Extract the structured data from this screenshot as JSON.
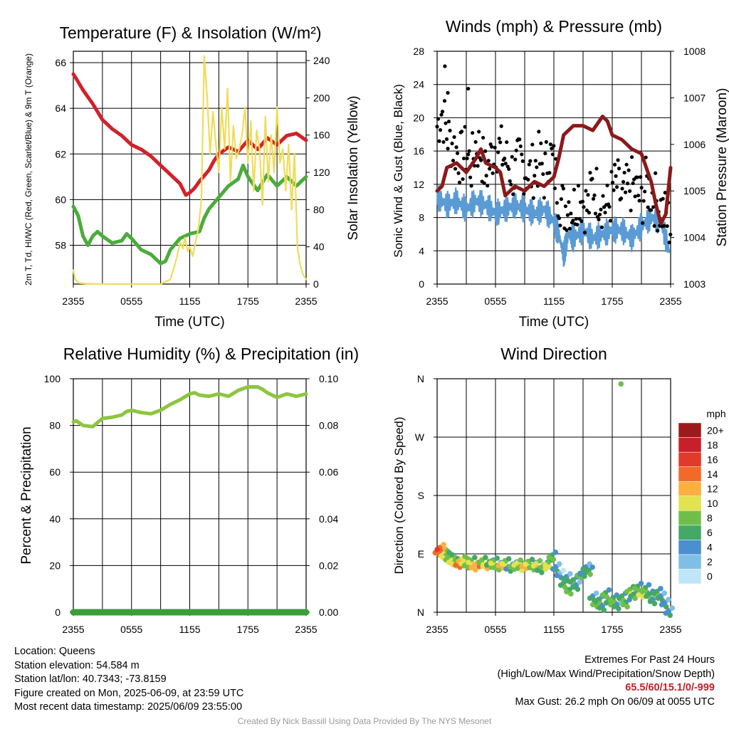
{
  "chart_data": [
    {
      "type": "line",
      "title": "Temperature (F) & Insolation (W/m²)",
      "xlabel": "Time (UTC)",
      "ylabel": "2m T, Td, HI/WC (Red, Green, Scarlet/Blue) & 9m T (Orange)",
      "ylabel_right": "Solar Insolation (Yellow)",
      "x_ticks": [
        "2355",
        "0555",
        "1155",
        "1755",
        "2355"
      ],
      "ylim": [
        56.3,
        66.5
      ],
      "y_ticks": [
        58,
        60,
        62,
        64,
        66
      ],
      "ylim_right": [
        0,
        250
      ],
      "y_ticks_right": [
        0,
        40,
        80,
        120,
        160,
        200,
        240
      ],
      "grid": true,
      "series": [
        {
          "color": "#d3212a",
          "hours": [
            0,
            0.3,
            1,
            2,
            3,
            4,
            5,
            6,
            7,
            8,
            9,
            10,
            11,
            11.6,
            12,
            12.5,
            13,
            14,
            14.5,
            15,
            16,
            17,
            18,
            19,
            20,
            21,
            22,
            23,
            24
          ],
          "values": [
            65.5,
            65.3,
            64.8,
            64.2,
            63.5,
            63.1,
            62.8,
            62.4,
            62.2,
            61.9,
            61.5,
            61.1,
            60.7,
            60.2,
            60.3,
            60.5,
            60.8,
            61.3,
            61.7,
            62.0,
            62.3,
            62.1,
            62.6,
            62.2,
            62.7,
            62.4,
            62.8,
            62.9,
            62.6
          ]
        },
        {
          "color": "#4aac3c",
          "hours": [
            0,
            0.5,
            1,
            1.5,
            2,
            2.5,
            3,
            4,
            5,
            5.5,
            6,
            7,
            8,
            9,
            9.5,
            10,
            11,
            12,
            13,
            13.5,
            14,
            15,
            16,
            17,
            17.5,
            18,
            19,
            20,
            21,
            22,
            23,
            24
          ],
          "values": [
            59.7,
            59.3,
            58.4,
            58.0,
            58.4,
            58.6,
            58.4,
            58.1,
            58.2,
            58.5,
            58.3,
            57.8,
            57.6,
            57.2,
            57.3,
            57.8,
            58.3,
            58.5,
            58.6,
            59.2,
            59.6,
            60.1,
            60.6,
            60.9,
            61.5,
            61.0,
            60.4,
            61.1,
            60.6,
            61.0,
            60.6,
            61.0
          ]
        },
        {
          "color": "#f0dc5a",
          "hours": [
            0,
            0.2,
            0.6,
            2,
            5,
            8,
            9,
            10,
            10.3,
            10.7,
            11,
            11.3,
            11.5,
            11.8,
            12,
            12.3,
            12.6,
            12.9,
            13.2,
            13.5,
            13.8,
            14.1,
            14.4,
            14.7,
            15,
            15.3,
            15.6,
            15.9,
            16.2,
            16.5,
            16.8,
            17.1,
            17.4,
            17.7,
            18,
            18.3,
            18.6,
            18.9,
            19.2,
            19.5,
            19.8,
            20.1,
            20.4,
            20.7,
            21,
            21.3,
            21.6,
            21.9,
            22.2,
            22.5,
            22.8,
            23.1,
            23.4,
            23.7,
            24
          ],
          "values": [
            15,
            5,
            1,
            0,
            0,
            0,
            0,
            5,
            15,
            30,
            45,
            38,
            50,
            35,
            40,
            30,
            45,
            60,
            90,
            245,
            200,
            140,
            185,
            150,
            120,
            190,
            145,
            210,
            110,
            170,
            135,
            145,
            160,
            190,
            130,
            175,
            100,
            165,
            145,
            85,
            180,
            110,
            160,
            120,
            190,
            130,
            145,
            100,
            150,
            80,
            140,
            40,
            20,
            10,
            5
          ]
        }
      ]
    },
    {
      "type": "line",
      "title": "Winds (mph) & Pressure (mb)",
      "xlabel": "Time (UTC)",
      "ylabel": "Sonic Wind & Gust (Blue, Black)",
      "ylabel_right": "Station Pressure (Maroon)",
      "x_ticks": [
        "2355",
        "0555",
        "1155",
        "1755",
        "2355"
      ],
      "ylim": [
        0,
        28
      ],
      "y_ticks": [
        0,
        4,
        8,
        12,
        16,
        20,
        24,
        28
      ],
      "ylim_right": [
        1003,
        1008
      ],
      "y_ticks_right": [
        1003,
        1004,
        1005,
        1006,
        1007,
        1008
      ],
      "grid": true,
      "series": [
        {
          "color": "#5b9bd5",
          "hours": [
            0,
            1,
            2,
            3,
            4,
            5,
            6,
            7,
            8,
            9,
            10,
            11,
            12,
            12.5,
            13,
            13.5,
            14,
            15,
            16,
            17,
            18,
            19,
            20,
            21,
            22,
            23,
            24
          ],
          "values": [
            10.5,
            9.5,
            10,
            9,
            10,
            9.5,
            8.5,
            9,
            9.5,
            9,
            8.5,
            9,
            7.5,
            6,
            3.5,
            6,
            5.5,
            6.5,
            5.5,
            6,
            6.5,
            6.5,
            5.5,
            7,
            8,
            7.5,
            3.5
          ]
        },
        {
          "color": "#8b1a1a",
          "hours": [
            0,
            0.5,
            1,
            2,
            3,
            4,
            4.5,
            5,
            6,
            6.5,
            7,
            8,
            9,
            10,
            11,
            12,
            12.5,
            13,
            14,
            15,
            16,
            17,
            17.5,
            18,
            19,
            20,
            21,
            22,
            22.5,
            23,
            23.5,
            24
          ],
          "values": [
            1005.0,
            1005.1,
            1005.5,
            1005.6,
            1005.4,
            1005.7,
            1005.9,
            1005.6,
            1005.5,
            1005.4,
            1004.9,
            1005.1,
            1005.0,
            1005.2,
            1005.1,
            1005.3,
            1005.7,
            1006.2,
            1006.4,
            1006.4,
            1006.3,
            1006.6,
            1006.5,
            1006.2,
            1006.1,
            1005.9,
            1005.8,
            1005.2,
            1004.7,
            1004.3,
            1004.5,
            1005.5
          ]
        }
      ]
    },
    {
      "type": "line",
      "title": "Relative Humidity (%) & Precipitation (in)",
      "ylabel": "Percent & Precipitation",
      "x_ticks": [
        "2355",
        "0555",
        "1155",
        "1755",
        "2355"
      ],
      "ylim": [
        0,
        100
      ],
      "y_ticks": [
        0,
        20,
        40,
        60,
        80,
        100
      ],
      "ylim_right": [
        0,
        0.1
      ],
      "y_ticks_right": [
        "0.00",
        "0.02",
        "0.04",
        "0.06",
        "0.08",
        "0.10"
      ],
      "grid": true,
      "series": [
        {
          "color": "#8cc63f",
          "hours": [
            0,
            0.3,
            1,
            2,
            3,
            4,
            5,
            5.5,
            6,
            7,
            8,
            9,
            10,
            11,
            12,
            12.5,
            13,
            14,
            15,
            16,
            17,
            18,
            19,
            19.5,
            20,
            21,
            22,
            23,
            23.5,
            24
          ],
          "values": [
            81.5,
            82,
            80,
            79.5,
            83,
            83.5,
            84.5,
            86,
            86.5,
            85.5,
            85,
            86.5,
            89,
            91,
            93.5,
            94,
            93,
            92.5,
            93.5,
            92.5,
            95,
            96.5,
            96.5,
            95.5,
            94,
            92,
            93.5,
            92.5,
            93,
            93.5
          ]
        },
        {
          "color": "#3a9e3a",
          "hours": [
            0,
            24
          ],
          "values": [
            0,
            0
          ]
        }
      ]
    },
    {
      "type": "scatter",
      "title": "Wind Direction",
      "ylabel": "Direction (Colored By Speed)",
      "x_ticks": [
        "2355",
        "0555",
        "1155",
        "1755",
        "2355"
      ],
      "y_ticks": [
        "N",
        "E",
        "S",
        "W",
        "N"
      ],
      "colorbar_title": "mph",
      "colorbar_labels": [
        "0",
        "2",
        "4",
        "6",
        "8",
        "10",
        "12",
        "14",
        "16",
        "18",
        "20+"
      ],
      "colorbar_colors": [
        "#bfe6f8",
        "#7fbfe6",
        "#4a8fcf",
        "#44a866",
        "#6fbf4a",
        "#e3e24f",
        "#fbb040",
        "#f06a2a",
        "#e03a2a",
        "#c8202a",
        "#9b1b1b"
      ],
      "points_dir_deg": [
        [
          0.1,
          95,
          12
        ],
        [
          0.3,
          100,
          14
        ],
        [
          0.5,
          93,
          13
        ],
        [
          0.7,
          90,
          9
        ],
        [
          0.9,
          87,
          8
        ],
        [
          1.2,
          84,
          7
        ],
        [
          1.5,
          80,
          9
        ],
        [
          1.8,
          78,
          8
        ],
        [
          2.2,
          76,
          12
        ],
        [
          2.5,
          82,
          10
        ],
        [
          2.8,
          78,
          9
        ],
        [
          3.1,
          75,
          6
        ],
        [
          3.5,
          80,
          8
        ],
        [
          3.8,
          72,
          10
        ],
        [
          4.2,
          77,
          11
        ],
        [
          4.6,
          80,
          7
        ],
        [
          5.0,
          74,
          9
        ],
        [
          5.4,
          76,
          5
        ],
        [
          5.8,
          79,
          8
        ],
        [
          6.2,
          72,
          6
        ],
        [
          6.6,
          75,
          10
        ],
        [
          7.0,
          78,
          8
        ],
        [
          7.4,
          70,
          3
        ],
        [
          7.8,
          73,
          6
        ],
        [
          8.2,
          76,
          9
        ],
        [
          8.6,
          71,
          7
        ],
        [
          9.0,
          74,
          10
        ],
        [
          9.4,
          77,
          8
        ],
        [
          9.8,
          72,
          6
        ],
        [
          10.2,
          75,
          9
        ],
        [
          10.6,
          68,
          4
        ],
        [
          11.0,
          73,
          7
        ],
        [
          11.4,
          76,
          8
        ],
        [
          11.8,
          88,
          6
        ],
        [
          12.2,
          70,
          3
        ],
        [
          12.6,
          60,
          2
        ],
        [
          13.0,
          45,
          5
        ],
        [
          13.3,
          55,
          4
        ],
        [
          13.6,
          35,
          6
        ],
        [
          14.0,
          50,
          5
        ],
        [
          14.3,
          42,
          4
        ],
        [
          14.7,
          60,
          6
        ],
        [
          15.0,
          62,
          3
        ],
        [
          15.3,
          70,
          4
        ],
        [
          15.6,
          65,
          5
        ],
        [
          16.0,
          25,
          4
        ],
        [
          16.3,
          15,
          6
        ],
        [
          16.6,
          20,
          5
        ],
        [
          17.0,
          10,
          4
        ],
        [
          17.3,
          30,
          6
        ],
        [
          17.7,
          18,
          5
        ],
        [
          18.1,
          22,
          6
        ],
        [
          18.5,
          12,
          4
        ],
        [
          19.0,
          25,
          5
        ],
        [
          19.4,
          15,
          6
        ],
        [
          19.8,
          35,
          7
        ],
        [
          20.2,
          28,
          5
        ],
        [
          20.6,
          40,
          6
        ],
        [
          21.0,
          30,
          8
        ],
        [
          21.4,
          38,
          6
        ],
        [
          21.8,
          28,
          5
        ],
        [
          22.2,
          20,
          4
        ],
        [
          22.6,
          32,
          5
        ],
        [
          23.0,
          25,
          4
        ],
        [
          23.4,
          15,
          3
        ],
        [
          23.8,
          2,
          3
        ],
        [
          18.9,
          352,
          8
        ]
      ]
    }
  ],
  "footer": {
    "location": "Location: Queens",
    "elevation": "Station elevation: 54.584 m",
    "latlon": "Station lat/lon: 40.7343; -73.8159",
    "created": "Figure created on Mon, 2025-06-09, at 23:59 UTC",
    "recent": "Most recent data timestamp: 2025/06/09 23:55:00",
    "extremes_title": "Extremes For Past 24 Hours",
    "extremes_desc": "(High/Low/Max Wind/Precipitation/Snow Depth)",
    "extremes_values": "65.5/60/15.1/0/-999",
    "max_gust": "Max Gust: 26.2 mph On 06/09 at 0055 UTC",
    "credit": "Created By Nick Bassill Using Data Provided By The NYS Mesonet"
  }
}
